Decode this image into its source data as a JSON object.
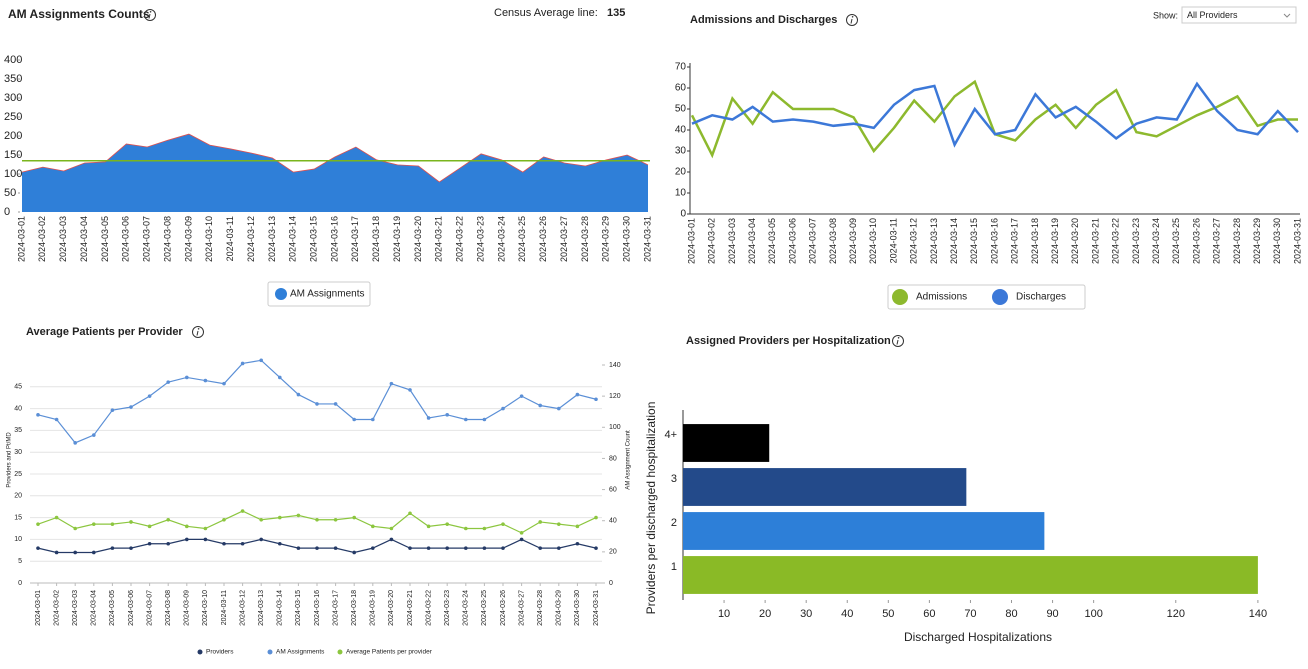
{
  "controls": {
    "show_label": "Show:",
    "provider_filter": "All Providers"
  },
  "chart_data": [
    {
      "type": "area",
      "title": "AM Assignments Counts",
      "census_label": "Census Average line:",
      "census_average": 135,
      "census_color": "#7ab51d",
      "outline_color": "#e0504f",
      "categories": [
        "2024-03-01",
        "2024-03-02",
        "2024-03-03",
        "2024-03-04",
        "2024-03-05",
        "2024-03-06",
        "2024-03-07",
        "2024-03-08",
        "2024-03-09",
        "2024-03-10",
        "2024-03-11",
        "2024-03-12",
        "2024-03-13",
        "2024-03-14",
        "2024-03-15",
        "2024-03-16",
        "2024-03-17",
        "2024-03-18",
        "2024-03-19",
        "2024-03-20",
        "2024-03-21",
        "2024-03-22",
        "2024-03-23",
        "2024-03-24",
        "2024-03-25",
        "2024-03-26",
        "2024-03-27",
        "2024-03-28",
        "2024-03-29",
        "2024-03-30",
        "2024-03-31"
      ],
      "series": [
        {
          "name": "AM Assignments",
          "color": "#2f7fd8",
          "values": [
            105,
            118,
            108,
            129,
            132,
            179,
            171,
            189,
            205,
            176,
            166,
            155,
            142,
            105,
            113,
            145,
            171,
            137,
            124,
            121,
            79,
            116,
            153,
            137,
            105,
            145,
            129,
            121,
            137,
            150,
            124
          ]
        }
      ],
      "ylim": [
        0,
        400
      ],
      "yticks": [
        0,
        50,
        100,
        150,
        200,
        250,
        300,
        350,
        400
      ],
      "legend": "bottom"
    },
    {
      "type": "line",
      "title": "Admissions and Discharges",
      "categories": [
        "2024-03-01",
        "2024-03-02",
        "2024-03-03",
        "2024-03-04",
        "2024-03-05",
        "2024-03-06",
        "2024-03-07",
        "2024-03-08",
        "2024-03-09",
        "2024-03-10",
        "2024-03-11",
        "2024-03-12",
        "2024-03-13",
        "2024-03-14",
        "2024-03-15",
        "2024-03-16",
        "2024-03-17",
        "2024-03-18",
        "2024-03-19",
        "2024-03-20",
        "2024-03-21",
        "2024-03-22",
        "2024-03-23",
        "2024-03-24",
        "2024-03-25",
        "2024-03-26",
        "2024-03-27",
        "2024-03-28",
        "2024-03-29",
        "2024-03-30",
        "2024-03-31"
      ],
      "series": [
        {
          "name": "Admissions",
          "color": "#8db92e",
          "values": [
            47,
            28,
            55,
            43,
            58,
            50,
            50,
            50,
            46,
            30,
            41,
            54,
            44,
            56,
            63,
            38,
            35,
            45,
            52,
            41,
            52,
            59,
            39,
            37,
            42,
            47,
            51,
            56,
            42,
            45,
            45
          ]
        },
        {
          "name": "Discharges",
          "color": "#3c78d8",
          "values": [
            43,
            47,
            45,
            51,
            44,
            45,
            44,
            42,
            43,
            41,
            52,
            59,
            61,
            33,
            50,
            38,
            40,
            57,
            46,
            51,
            44,
            36,
            43,
            46,
            45,
            62,
            49,
            40,
            38,
            49,
            39
          ]
        }
      ],
      "ylim": [
        0,
        70
      ],
      "yticks": [
        0,
        10,
        20,
        30,
        40,
        50,
        60,
        70
      ],
      "legend": "bottom"
    },
    {
      "type": "line",
      "title": "Average Patients per Provider",
      "y_label": "Providers and Pt/MD",
      "y2_label": "AM Assignment Count",
      "grid": true,
      "markers": true,
      "categories": [
        "2024-03-01",
        "2024-03-02",
        "2024-03-03",
        "2024-03-04",
        "2024-03-05",
        "2024-03-06",
        "2024-03-07",
        "2024-03-08",
        "2024-03-09",
        "2024-03-10",
        "2024-03-11",
        "2024-03-12",
        "2024-03-13",
        "2024-03-14",
        "2024-03-15",
        "2024-03-16",
        "2024-03-17",
        "2024-03-18",
        "2024-03-19",
        "2024-03-20",
        "2024-03-21",
        "2024-03-22",
        "2024-03-23",
        "2024-03-24",
        "2024-03-25",
        "2024-03-26",
        "2024-03-27",
        "2024-03-28",
        "2024-03-29",
        "2024-03-30",
        "2024-03-31"
      ],
      "series": [
        {
          "name": "Providers",
          "color": "#253a66",
          "values": [
            8,
            7,
            7,
            7,
            8,
            8,
            9,
            9,
            10,
            10,
            9,
            9,
            10,
            9,
            8,
            8,
            8,
            7,
            8,
            10,
            8,
            8,
            8,
            8,
            8,
            8,
            10,
            8,
            8,
            9,
            8
          ]
        },
        {
          "name": "AM Assignments",
          "color": "#5b8fd6",
          "axis": "y2",
          "values": [
            108,
            105,
            90,
            95,
            111,
            113,
            120,
            129,
            132,
            130,
            128,
            141,
            143,
            132,
            121,
            115,
            115,
            105,
            105,
            128,
            124,
            106,
            108,
            105,
            105,
            112,
            120,
            114,
            112,
            121,
            118
          ]
        },
        {
          "name": "Average Patients per provider",
          "color": "#8cc63f",
          "values": [
            13.5,
            15,
            12.5,
            13.5,
            13.5,
            14,
            13,
            14.5,
            13,
            12.5,
            14.5,
            16.5,
            14.5,
            15,
            15.5,
            14.5,
            14.5,
            15,
            13,
            12.5,
            16,
            13,
            13.5,
            12.5,
            12.5,
            13.5,
            11.5,
            14,
            13.5,
            13,
            15
          ]
        }
      ],
      "ylim": [
        0,
        50
      ],
      "yticks": [
        0,
        5,
        10,
        15,
        20,
        25,
        30,
        35,
        40,
        45
      ],
      "y2lim": [
        0,
        140
      ],
      "y2ticks": [
        0,
        20,
        40,
        60,
        80,
        100,
        120,
        140
      ],
      "legend": "bottom"
    },
    {
      "type": "hbar",
      "title": "Assigned Providers per Hospitalization",
      "x_label": "Discharged Hospitalizations",
      "y_label": "Providers per discharged hospitalization",
      "categories": [
        "1",
        "2",
        "3",
        "4+"
      ],
      "values": [
        140,
        88,
        69,
        21
      ],
      "colors": [
        "#8aba26",
        "#2d7fd8",
        "#234a8a",
        "#000000"
      ],
      "xlim": [
        0,
        141
      ],
      "xticks": [
        10,
        20,
        30,
        40,
        50,
        60,
        70,
        80,
        90,
        100,
        120,
        140
      ]
    }
  ]
}
